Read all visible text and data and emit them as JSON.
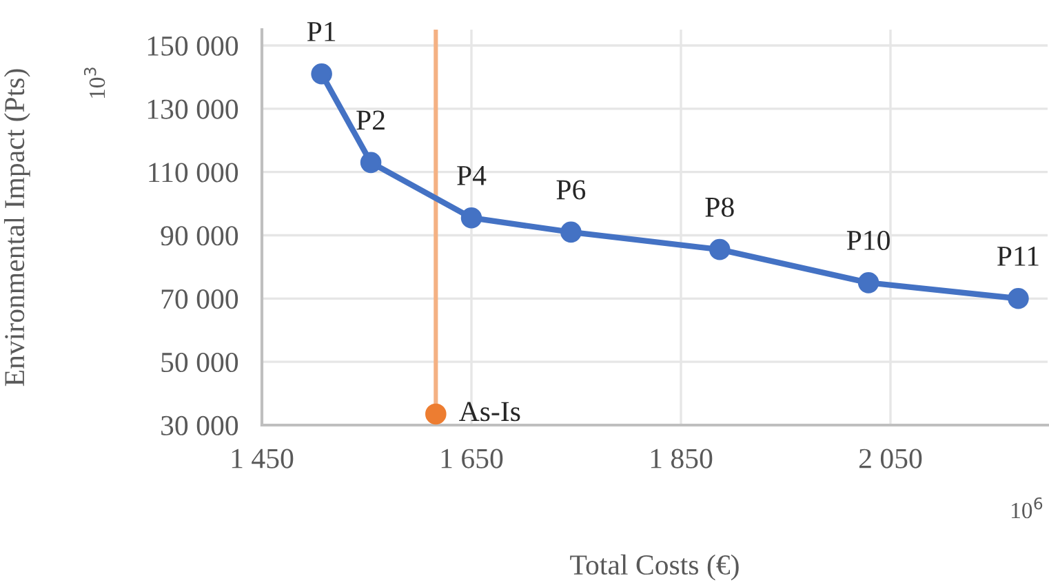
{
  "chart_data": {
    "type": "line",
    "xlabel": "Total Costs (€)",
    "ylabel": "Environmental Impact (Pts)",
    "series": [
      {
        "color": "#4472c4",
        "marker": "circle",
        "x": [
          1507,
          1554,
          1650,
          1745,
          1887,
          2029,
          2172
        ],
        "values": [
          141000,
          113000,
          95500,
          91000,
          85500,
          75000,
          70000
        ]
      },
      {
        "type": "scatter",
        "name": "As-Is",
        "color": "#ed7d31",
        "marker": "circle",
        "x": [
          1616
        ],
        "values": [
          33500
        ]
      }
    ],
    "annotations": [
      {
        "text": "P1",
        "x": 1507,
        "y": 141000
      },
      {
        "text": "P2",
        "x": 1554,
        "y": 113000
      },
      {
        "text": "P4",
        "x": 1650,
        "y": 95500
      },
      {
        "text": "P6",
        "x": 1745,
        "y": 91000
      },
      {
        "text": "P8",
        "x": 1887,
        "y": 85500
      },
      {
        "text": "P10",
        "x": 2029,
        "y": 75000
      },
      {
        "text": "P11",
        "x": 2172,
        "y": 70000
      },
      "10$^{3}$",
      "10$^{6}$"
    ],
    "ref_lines": [
      {
        "axis": "x",
        "value": 1616,
        "color": "#f4b183"
      }
    ],
    "xlim": [
      1450,
      2200
    ],
    "xticks": [
      {
        "value": 1450,
        "label": "1 450"
      },
      {
        "value": 1650,
        "label": "1 650"
      },
      {
        "value": 1850,
        "label": "1 850"
      },
      {
        "value": 2050,
        "label": "2 050"
      }
    ],
    "ylim": [
      30000,
      155000
    ],
    "yticks": [
      {
        "value": 30000,
        "label": "30 000"
      },
      {
        "value": 50000,
        "label": "50 000"
      },
      {
        "value": 70000,
        "label": "70 000"
      },
      {
        "value": 90000,
        "label": "90 000"
      },
      {
        "value": 110000,
        "label": "110 000"
      },
      {
        "value": 130000,
        "label": "130 000"
      },
      {
        "value": 150000,
        "label": "150 000"
      }
    ],
    "grid": true,
    "legend": false
  }
}
